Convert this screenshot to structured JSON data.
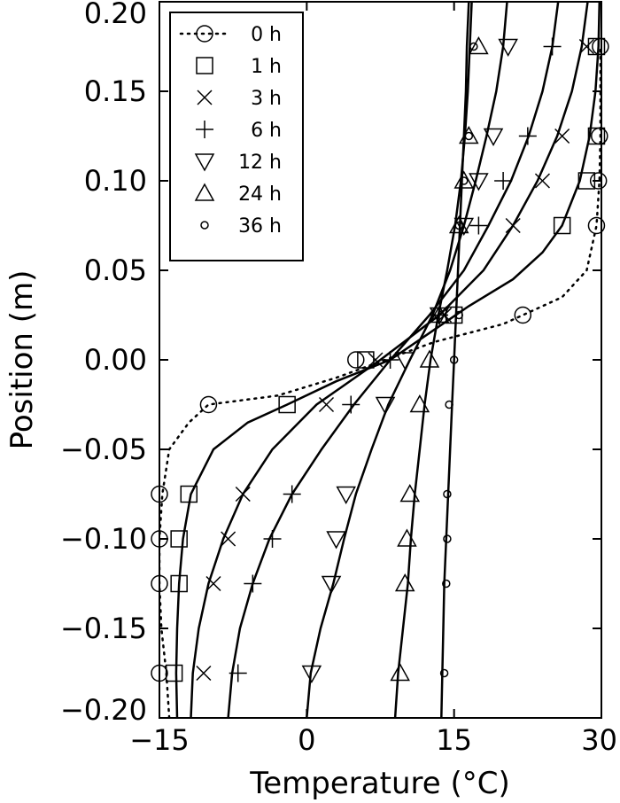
{
  "chart_data": {
    "type": "line",
    "xlabel": "Temperature (°C)",
    "ylabel": "Position (m)",
    "xlim": [
      -15,
      30
    ],
    "ylim": [
      -0.2,
      0.2
    ],
    "xticks": [
      -15,
      0,
      15,
      30
    ],
    "xtick_labels": [
      "−15",
      "0",
      "15",
      "30"
    ],
    "yticks": [
      -0.2,
      -0.15,
      -0.1,
      -0.05,
      0.0,
      0.05,
      0.1,
      0.15,
      0.2
    ],
    "ytick_labels": [
      "−0.20",
      "−0.15",
      "−0.10",
      "−0.05",
      "0.00",
      "0.05",
      "0.10",
      "0.15",
      "0.20"
    ],
    "grid": false,
    "legend_position": "top-left",
    "series": [
      {
        "name": "0 h",
        "marker": "circle",
        "line": "dotted",
        "points": [
          [
            -15.0,
            -0.175
          ],
          [
            -15.0,
            -0.125
          ],
          [
            -15.0,
            -0.1
          ],
          [
            -15.0,
            -0.075
          ],
          [
            -10.0,
            -0.025
          ],
          [
            5.0,
            0.0
          ],
          [
            22.0,
            0.025
          ],
          [
            29.5,
            0.075
          ],
          [
            29.7,
            0.1
          ],
          [
            29.8,
            0.125
          ],
          [
            29.9,
            0.175
          ]
        ],
        "curve": [
          [
            -14.0,
            -0.2
          ],
          [
            -14.3,
            -0.175
          ],
          [
            -14.8,
            -0.15
          ],
          [
            -15.0,
            -0.125
          ],
          [
            -15.0,
            -0.1
          ],
          [
            -14.7,
            -0.075
          ],
          [
            -14.0,
            -0.05
          ],
          [
            -12.0,
            -0.035
          ],
          [
            -10.0,
            -0.025
          ],
          [
            -3.0,
            -0.02
          ],
          [
            3.0,
            -0.01
          ],
          [
            8.0,
            0.0
          ],
          [
            13.0,
            0.01
          ],
          [
            20.0,
            0.02
          ],
          [
            22.0,
            0.025
          ],
          [
            26.0,
            0.035
          ],
          [
            28.5,
            0.05
          ],
          [
            29.5,
            0.075
          ],
          [
            29.8,
            0.1
          ],
          [
            29.9,
            0.125
          ],
          [
            29.9,
            0.175
          ]
        ]
      },
      {
        "name": "1 h",
        "marker": "square",
        "line": "solid",
        "points": [
          [
            -13.5,
            -0.175
          ],
          [
            -13.0,
            -0.125
          ],
          [
            -13.0,
            -0.1
          ],
          [
            -12.0,
            -0.075
          ],
          [
            -2.0,
            -0.025
          ],
          [
            6.0,
            0.0
          ],
          [
            15.0,
            0.025
          ],
          [
            26.0,
            0.075
          ],
          [
            28.5,
            0.1
          ],
          [
            29.5,
            0.125
          ],
          [
            29.5,
            0.175
          ]
        ],
        "curve": [
          [
            -13.2,
            -0.2
          ],
          [
            -13.3,
            -0.175
          ],
          [
            -13.2,
            -0.15
          ],
          [
            -13.0,
            -0.125
          ],
          [
            -12.6,
            -0.1
          ],
          [
            -11.8,
            -0.075
          ],
          [
            -9.5,
            -0.05
          ],
          [
            -6.0,
            -0.035
          ],
          [
            -2.0,
            -0.025
          ],
          [
            3.0,
            -0.012
          ],
          [
            8.5,
            0.0
          ],
          [
            12.5,
            0.015
          ],
          [
            16.5,
            0.03
          ],
          [
            21.0,
            0.045
          ],
          [
            24.0,
            0.06
          ],
          [
            26.0,
            0.075
          ],
          [
            27.8,
            0.1
          ],
          [
            28.8,
            0.125
          ],
          [
            29.4,
            0.15
          ],
          [
            29.7,
            0.175
          ],
          [
            29.8,
            0.2
          ]
        ]
      },
      {
        "name": "3 h",
        "marker": "x",
        "line": "solid",
        "points": [
          [
            -10.5,
            -0.175
          ],
          [
            -9.5,
            -0.125
          ],
          [
            -8.0,
            -0.1
          ],
          [
            -6.5,
            -0.075
          ],
          [
            2.0,
            -0.025
          ],
          [
            7.0,
            0.0
          ],
          [
            14.0,
            0.025
          ],
          [
            21.0,
            0.075
          ],
          [
            24.0,
            0.1
          ],
          [
            26.0,
            0.125
          ],
          [
            28.5,
            0.175
          ]
        ],
        "curve": [
          [
            -11.8,
            -0.2
          ],
          [
            -11.6,
            -0.175
          ],
          [
            -11.0,
            -0.15
          ],
          [
            -10.0,
            -0.125
          ],
          [
            -8.5,
            -0.1
          ],
          [
            -6.5,
            -0.075
          ],
          [
            -3.5,
            -0.05
          ],
          [
            1.0,
            -0.025
          ],
          [
            7.5,
            0.0
          ],
          [
            13.5,
            0.025
          ],
          [
            18.0,
            0.05
          ],
          [
            21.0,
            0.075
          ],
          [
            23.5,
            0.1
          ],
          [
            25.5,
            0.125
          ],
          [
            27.0,
            0.15
          ],
          [
            28.0,
            0.175
          ],
          [
            28.6,
            0.2
          ]
        ]
      },
      {
        "name": "6 h",
        "marker": "plus",
        "line": "solid",
        "points": [
          [
            -7.0,
            -0.175
          ],
          [
            -5.5,
            -0.125
          ],
          [
            -3.5,
            -0.1
          ],
          [
            -1.5,
            -0.075
          ],
          [
            4.5,
            -0.025
          ],
          [
            8.5,
            0.0
          ],
          [
            13.5,
            0.025
          ],
          [
            17.5,
            0.075
          ],
          [
            20.0,
            0.1
          ],
          [
            22.5,
            0.125
          ],
          [
            25.0,
            0.175
          ]
        ],
        "curve": [
          [
            -8.0,
            -0.2
          ],
          [
            -7.6,
            -0.175
          ],
          [
            -6.8,
            -0.15
          ],
          [
            -5.5,
            -0.125
          ],
          [
            -3.8,
            -0.1
          ],
          [
            -1.5,
            -0.075
          ],
          [
            1.5,
            -0.05
          ],
          [
            4.8,
            -0.025
          ],
          [
            8.5,
            0.0
          ],
          [
            12.5,
            0.025
          ],
          [
            16.0,
            0.05
          ],
          [
            18.5,
            0.075
          ],
          [
            20.8,
            0.1
          ],
          [
            22.6,
            0.125
          ],
          [
            24.0,
            0.15
          ],
          [
            25.0,
            0.175
          ],
          [
            25.6,
            0.2
          ]
        ]
      },
      {
        "name": "12 h",
        "marker": "triangle-down",
        "line": "solid",
        "points": [
          [
            0.5,
            -0.175
          ],
          [
            2.5,
            -0.125
          ],
          [
            3.0,
            -0.1
          ],
          [
            4.0,
            -0.075
          ],
          [
            8.0,
            -0.025
          ],
          [
            10.0,
            0.0
          ],
          [
            13.5,
            0.025
          ],
          [
            16.0,
            0.075
          ],
          [
            17.5,
            0.1
          ],
          [
            19.0,
            0.125
          ],
          [
            20.5,
            0.175
          ]
        ],
        "curve": [
          [
            0.0,
            -0.2
          ],
          [
            0.4,
            -0.175
          ],
          [
            1.4,
            -0.15
          ],
          [
            2.7,
            -0.125
          ],
          [
            3.8,
            -0.1
          ],
          [
            5.0,
            -0.075
          ],
          [
            6.6,
            -0.05
          ],
          [
            8.3,
            -0.025
          ],
          [
            10.5,
            0.0
          ],
          [
            12.8,
            0.025
          ],
          [
            14.6,
            0.05
          ],
          [
            16.0,
            0.075
          ],
          [
            17.2,
            0.1
          ],
          [
            18.3,
            0.125
          ],
          [
            19.3,
            0.15
          ],
          [
            20.0,
            0.175
          ],
          [
            20.4,
            0.2
          ]
        ]
      },
      {
        "name": "24 h",
        "marker": "triangle-up",
        "line": "solid",
        "points": [
          [
            9.5,
            -0.175
          ],
          [
            10.0,
            -0.125
          ],
          [
            10.2,
            -0.1
          ],
          [
            10.5,
            -0.075
          ],
          [
            11.5,
            -0.025
          ],
          [
            12.5,
            0.0
          ],
          [
            13.5,
            0.025
          ],
          [
            15.5,
            0.075
          ],
          [
            16.0,
            0.1
          ],
          [
            16.5,
            0.125
          ],
          [
            17.5,
            0.175
          ]
        ],
        "curve": [
          [
            9.0,
            -0.2
          ],
          [
            9.3,
            -0.175
          ],
          [
            9.8,
            -0.15
          ],
          [
            10.3,
            -0.125
          ],
          [
            10.6,
            -0.1
          ],
          [
            11.0,
            -0.075
          ],
          [
            11.5,
            -0.05
          ],
          [
            12.0,
            -0.025
          ],
          [
            12.6,
            0.0
          ],
          [
            13.4,
            0.025
          ],
          [
            14.3,
            0.05
          ],
          [
            15.1,
            0.075
          ],
          [
            15.7,
            0.1
          ],
          [
            16.1,
            0.125
          ],
          [
            16.4,
            0.15
          ],
          [
            16.6,
            0.175
          ],
          [
            16.8,
            0.2
          ]
        ]
      },
      {
        "name": "36 h",
        "marker": "small-circle",
        "line": "solid",
        "points": [
          [
            14.0,
            -0.175
          ],
          [
            14.2,
            -0.125
          ],
          [
            14.3,
            -0.1
          ],
          [
            14.3,
            -0.075
          ],
          [
            14.5,
            -0.025
          ],
          [
            15.0,
            0.0
          ],
          [
            15.5,
            0.025
          ],
          [
            15.5,
            0.075
          ],
          [
            16.0,
            0.1
          ],
          [
            16.5,
            0.125
          ],
          [
            17.0,
            0.175
          ]
        ],
        "curve": [
          [
            13.7,
            -0.2
          ],
          [
            13.8,
            -0.175
          ],
          [
            13.9,
            -0.15
          ],
          [
            14.0,
            -0.125
          ],
          [
            14.2,
            -0.1
          ],
          [
            14.4,
            -0.075
          ],
          [
            14.6,
            -0.05
          ],
          [
            14.8,
            -0.025
          ],
          [
            15.0,
            0.0
          ],
          [
            15.2,
            0.025
          ],
          [
            15.4,
            0.05
          ],
          [
            15.6,
            0.075
          ],
          [
            15.8,
            0.1
          ],
          [
            16.0,
            0.125
          ],
          [
            16.2,
            0.15
          ],
          [
            16.3,
            0.175
          ],
          [
            16.5,
            0.2
          ]
        ]
      }
    ]
  }
}
